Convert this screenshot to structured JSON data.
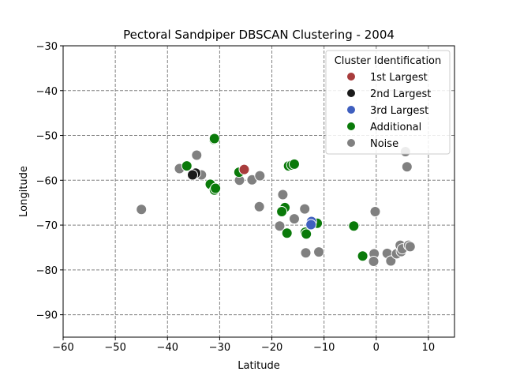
{
  "chart_data": {
    "type": "scatter",
    "title": "Pectoral Sandpiper DBSCAN Clustering - 2004",
    "xlabel": "Latitude",
    "ylabel": "Longitude",
    "xlim": [
      -60,
      15
    ],
    "ylim": [
      -95,
      -30
    ],
    "xticks": [
      -60,
      -50,
      -40,
      -30,
      -20,
      -10,
      0,
      10
    ],
    "yticks": [
      -90,
      -80,
      -70,
      -60,
      -50,
      -40,
      -30
    ],
    "grid": true,
    "legend": {
      "title": "Cluster Identification",
      "position": "top-right"
    },
    "series": [
      {
        "name": "1st Largest",
        "color": "#a83c3c",
        "points": [
          [
            -25.3,
            -57.6
          ]
        ]
      },
      {
        "name": "2nd Largest",
        "color": "#1a1a1a",
        "points": [
          [
            -34.6,
            -58.4
          ],
          [
            -35.2,
            -58.8
          ]
        ]
      },
      {
        "name": "3rd Largest",
        "color": "#3f5fbf",
        "points": [
          [
            -12.4,
            -69.2
          ],
          [
            -12.5,
            -69.9
          ]
        ]
      },
      {
        "name": "Additional",
        "color": "#0a7a0a",
        "points": [
          [
            -31.1,
            -50.9
          ],
          [
            -31.0,
            -50.7
          ],
          [
            -36.3,
            -56.8
          ],
          [
            -26.3,
            -58.2
          ],
          [
            -16.8,
            -56.8
          ],
          [
            -16.2,
            -56.6
          ],
          [
            -15.7,
            -56.4
          ],
          [
            -31.8,
            -60.9
          ],
          [
            -31.0,
            -62.2
          ],
          [
            -30.8,
            -61.8
          ],
          [
            -17.5,
            -66.1
          ],
          [
            -18.1,
            -67.0
          ],
          [
            -13.6,
            -71.6
          ],
          [
            -11.3,
            -69.6
          ],
          [
            -17.1,
            -71.8
          ],
          [
            -13.4,
            -72.0
          ],
          [
            -4.3,
            -70.2
          ],
          [
            -2.6,
            -76.9
          ]
        ]
      },
      {
        "name": "Noise",
        "color": "#808080",
        "points": [
          [
            -37.7,
            -57.4
          ],
          [
            -34.4,
            -54.4
          ],
          [
            -33.5,
            -58.8
          ],
          [
            -26.2,
            -60.0
          ],
          [
            -23.8,
            -59.9
          ],
          [
            -22.3,
            -59.0
          ],
          [
            -22.4,
            -65.9
          ],
          [
            -45.0,
            -66.5
          ],
          [
            -17.9,
            -63.2
          ],
          [
            -15.7,
            -68.6
          ],
          [
            -13.7,
            -66.4
          ],
          [
            -18.5,
            -70.2
          ],
          [
            -13.5,
            -76.2
          ],
          [
            -11.0,
            -76.0
          ],
          [
            -0.2,
            -67.0
          ],
          [
            -0.4,
            -76.4
          ],
          [
            -0.5,
            -78.1
          ],
          [
            2.1,
            -76.3
          ],
          [
            2.8,
            -78.0
          ],
          [
            3.9,
            -76.4
          ],
          [
            4.6,
            -74.5
          ],
          [
            4.8,
            -75.9
          ],
          [
            5.0,
            -75.3
          ],
          [
            5.6,
            -53.6
          ],
          [
            5.9,
            -57.0
          ],
          [
            6.2,
            -74.5
          ],
          [
            6.5,
            -74.8
          ]
        ]
      }
    ]
  }
}
